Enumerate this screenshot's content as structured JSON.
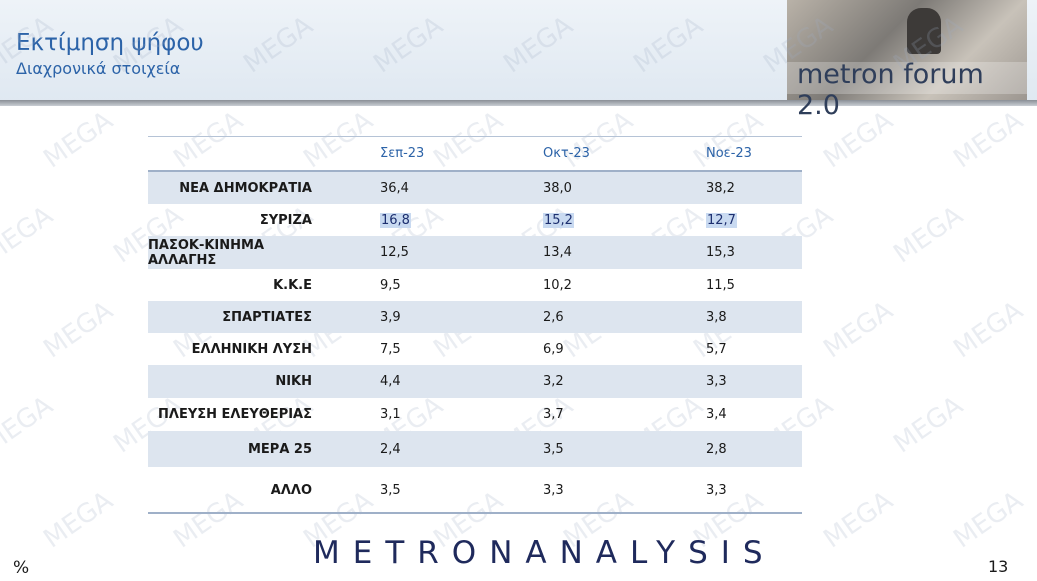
{
  "header": {
    "title": "Εκτίμηση ψήφου",
    "subtitle": "Διαχρονικά στοιχεία",
    "logo_text": "metron forum 2.0"
  },
  "table": {
    "columns": [
      "Σεπ-23",
      "Οκτ-23",
      "Νοε-23"
    ],
    "rows": [
      {
        "party": "ΝΕΑ ΔΗΜΟΚΡΑΤΙΑ",
        "values": [
          "36,4",
          "38,0",
          "38,2"
        ]
      },
      {
        "party": "ΣΥΡΙΖΑ",
        "values": [
          "16,8",
          "15,2",
          "12,7"
        ]
      },
      {
        "party": "ΠΑΣΟΚ-ΚΙΝΗΜΑ ΑΛΛΑΓΗΣ",
        "values": [
          "12,5",
          "13,4",
          "15,3"
        ]
      },
      {
        "party": "Κ.Κ.Ε",
        "values": [
          "9,5",
          "10,2",
          "11,5"
        ]
      },
      {
        "party": "ΣΠΑΡΤΙΑΤΕΣ",
        "values": [
          "3,9",
          "2,6",
          "3,8"
        ]
      },
      {
        "party": "ΕΛΛΗΝΙΚΗ ΛΥΣΗ",
        "values": [
          "7,5",
          "6,9",
          "5,7"
        ]
      },
      {
        "party": "ΝΙΚΗ",
        "values": [
          "4,4",
          "3,2",
          "3,3"
        ]
      },
      {
        "party": "ΠΛΕΥΣΗ ΕΛΕΥΘΕΡΙΑΣ",
        "values": [
          "3,1",
          "3,7",
          "3,4"
        ]
      },
      {
        "party": "ΜΕΡΑ 25",
        "values": [
          "2,4",
          "3,5",
          "2,8"
        ]
      },
      {
        "party": "ΑΛΛΟ",
        "values": [
          "3,5",
          "3,3",
          "3,3"
        ]
      }
    ]
  },
  "footer": {
    "brand": "METRONANALYSIS",
    "unit": "%",
    "page_number": "13"
  },
  "watermark": "MEGA",
  "colors": {
    "title": "#2c63a8",
    "row_shade": "#dde5ef",
    "brand": "#1f2a5c",
    "highlight": "#c9daf1"
  }
}
